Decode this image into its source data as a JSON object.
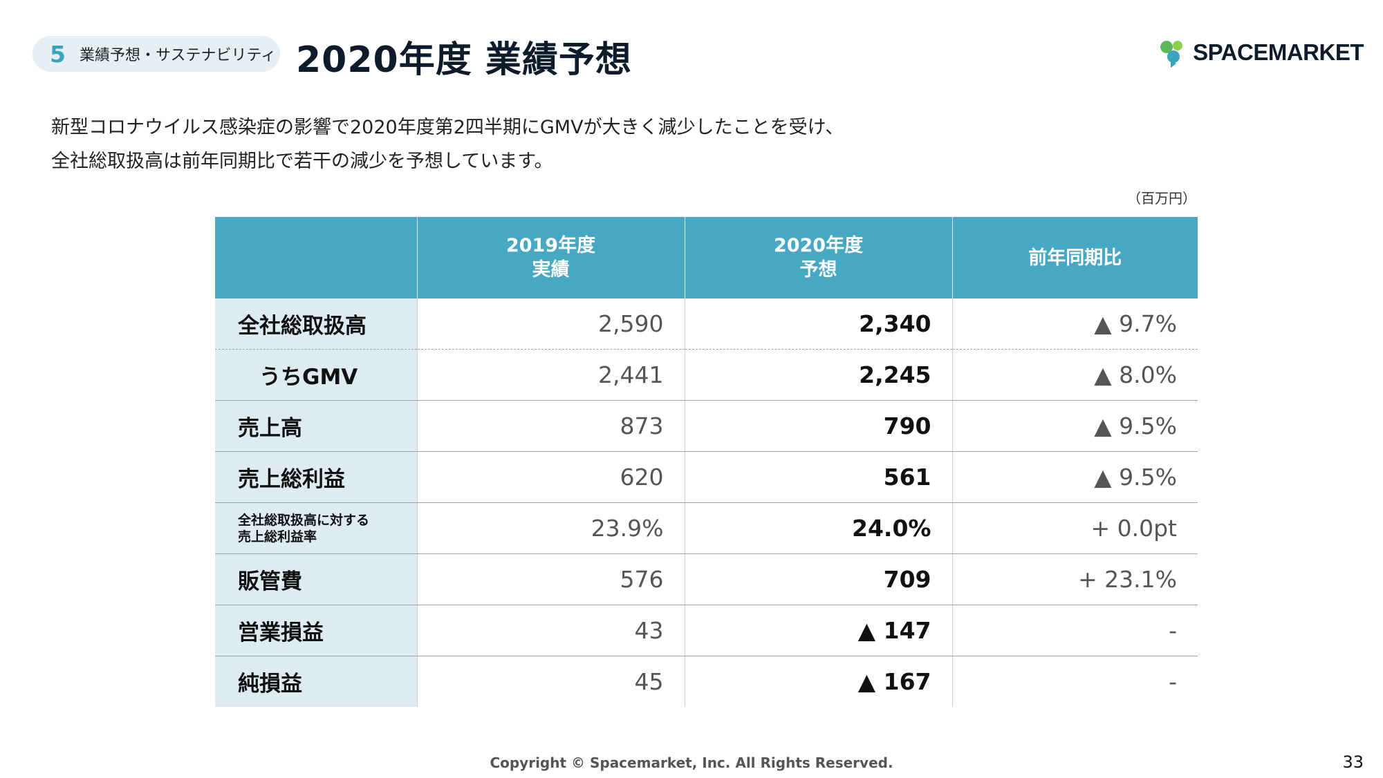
{
  "section": {
    "number": "5",
    "label": "業績予想・サステナビリティ"
  },
  "title": "2020年度 業績予想",
  "logo": {
    "text": "SPACEMARKET",
    "icon": "spacemarket-logo-icon"
  },
  "lead": {
    "line1": "新型コロナウイルス感染症の影響で2020年度第2四半期にGMVが大きく減少したことを受け、",
    "line2": "全社総取扱高は前年同期比で若干の減少を予想しています。"
  },
  "unit": "（百万円）",
  "table": {
    "headers": {
      "col1_line1": "2019年度",
      "col1_line2": "実績",
      "col2_line1": "2020年度",
      "col2_line2": "予想",
      "col3": "前年同期比"
    },
    "rows": [
      {
        "label": "全社総取扱高",
        "v2019": "2,590",
        "v2020": "2,340",
        "yoy": "▲ 9.7%"
      },
      {
        "label": "うちGMV",
        "v2019": "2,441",
        "v2020": "2,245",
        "yoy": "▲ 8.0%"
      },
      {
        "label": "売上高",
        "v2019": "873",
        "v2020": "790",
        "yoy": "▲ 9.5%"
      },
      {
        "label": "売上総利益",
        "v2019": "620",
        "v2020": "561",
        "yoy": "▲ 9.5%"
      },
      {
        "label_line1": "全社総取扱高に対する",
        "label_line2": "売上総利益率",
        "v2019": "23.9%",
        "v2020": "24.0%",
        "yoy": "+ 0.0pt"
      },
      {
        "label": "販管費",
        "v2019": "576",
        "v2020": "709",
        "yoy": "+ 23.1%"
      },
      {
        "label": "営業損益",
        "v2019": "43",
        "v2020": "▲ 147",
        "yoy": "-"
      },
      {
        "label": "純損益",
        "v2019": "45",
        "v2020": "▲ 167",
        "yoy": "-"
      }
    ]
  },
  "footer": "Copyright © Spacemarket, Inc. All Rights Reserved.",
  "page_number": "33",
  "colors": {
    "header_bg": "#47a8c4",
    "label_bg": "#deebf1",
    "accent": "#3aa3c0",
    "logo_green": "#5cb85c"
  }
}
